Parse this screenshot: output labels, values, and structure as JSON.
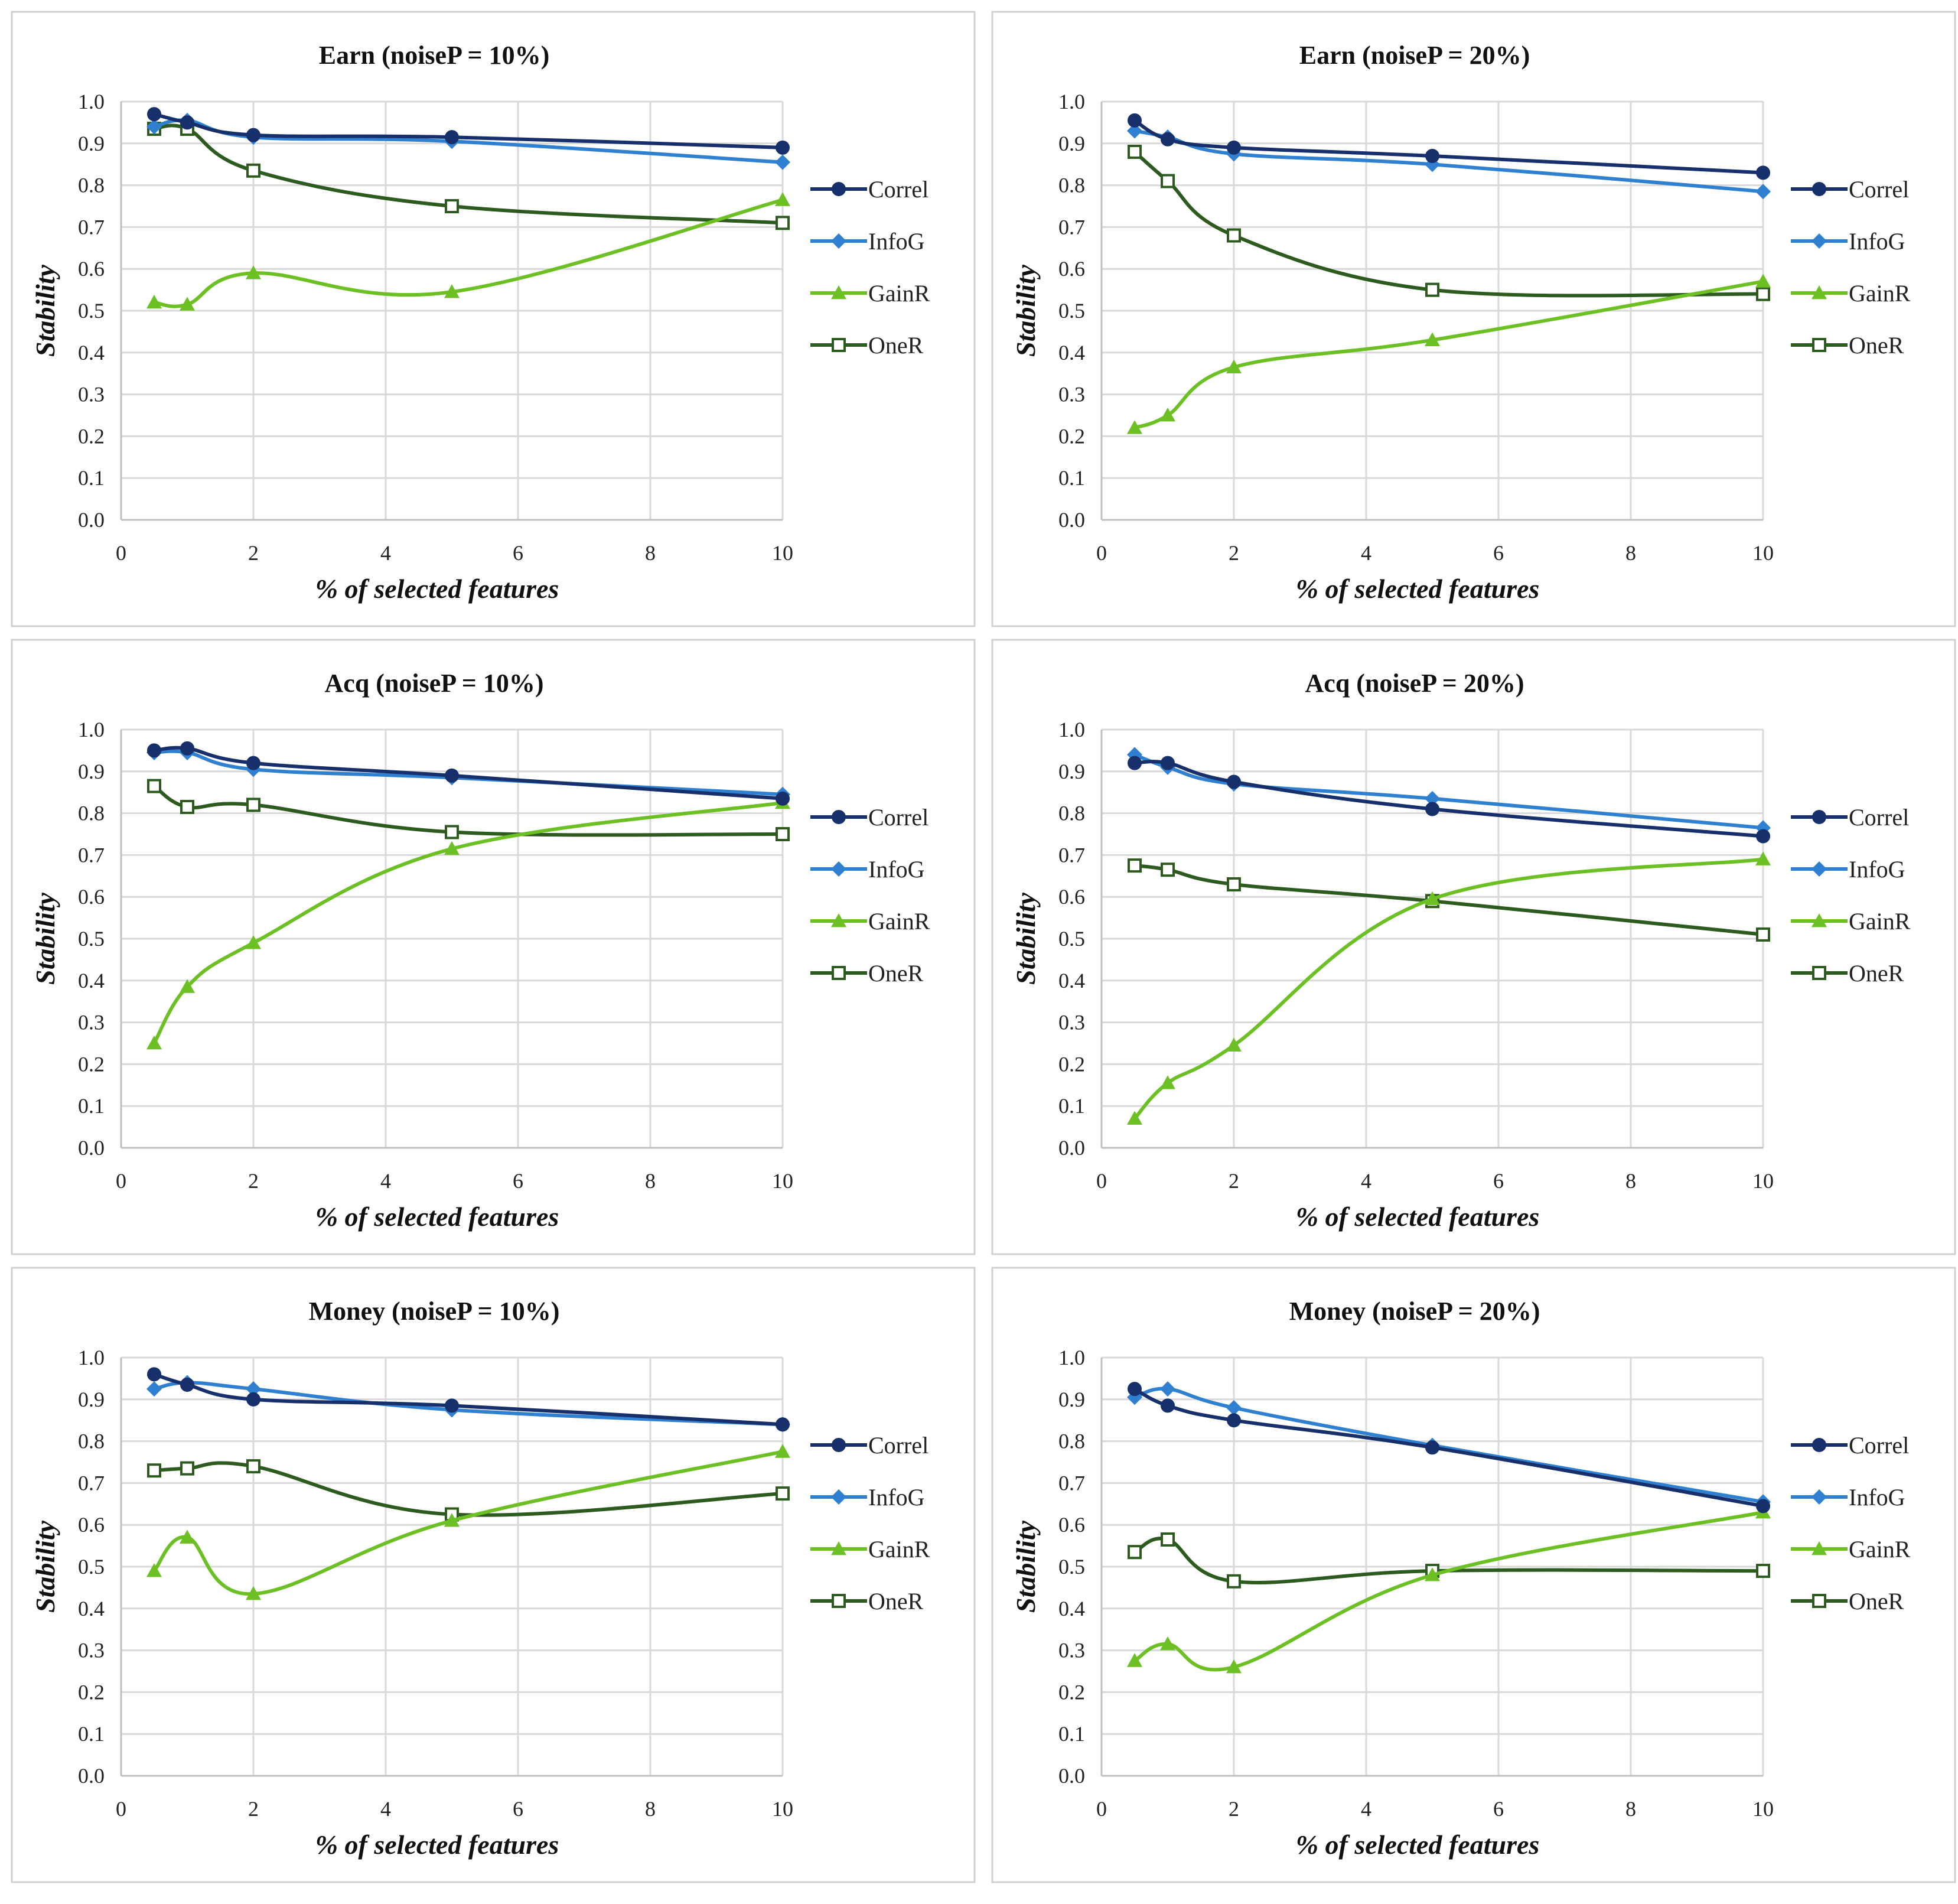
{
  "colors": {
    "Correl": "#17306b",
    "InfoG": "#2f80d0",
    "GainR": "#6cc024",
    "OneR": "#2d5a1e"
  },
  "markers": {
    "Correl": "circle",
    "InfoG": "diamond",
    "GainR": "triangle",
    "OneR": "square"
  },
  "chart_data": [
    {
      "type": "line",
      "title": "Earn (noiseP = 10%)",
      "xlabel": "% of selected features",
      "ylabel": "Stability",
      "xlim": [
        0,
        10
      ],
      "ylim": [
        0,
        1
      ],
      "xticks": [
        "0",
        "2",
        "4",
        "6",
        "8",
        "10"
      ],
      "yticks": [
        "0.0",
        "0.1",
        "0.2",
        "0.3",
        "0.4",
        "0.5",
        "0.6",
        "0.7",
        "0.8",
        "0.9",
        "1.0"
      ],
      "x": [
        0.5,
        1,
        2,
        5,
        10
      ],
      "series": [
        {
          "name": "Correl",
          "values": [
            0.97,
            0.95,
            0.92,
            0.915,
            0.89
          ]
        },
        {
          "name": "InfoG",
          "values": [
            0.94,
            0.955,
            0.915,
            0.905,
            0.855
          ]
        },
        {
          "name": "GainR",
          "values": [
            0.52,
            0.515,
            0.59,
            0.545,
            0.765
          ]
        },
        {
          "name": "OneR",
          "values": [
            0.935,
            0.935,
            0.835,
            0.75,
            0.71
          ]
        }
      ]
    },
    {
      "type": "line",
      "title": "Earn (noiseP = 20%)",
      "xlabel": "% of selected features",
      "ylabel": "Stability",
      "xlim": [
        0,
        10
      ],
      "ylim": [
        0,
        1
      ],
      "xticks": [
        "0",
        "2",
        "4",
        "6",
        "8",
        "10"
      ],
      "yticks": [
        "0.0",
        "0.1",
        "0.2",
        "0.3",
        "0.4",
        "0.5",
        "0.6",
        "0.7",
        "0.8",
        "0.9",
        "1.0"
      ],
      "x": [
        0.5,
        1,
        2,
        5,
        10
      ],
      "series": [
        {
          "name": "Correl",
          "values": [
            0.955,
            0.91,
            0.89,
            0.87,
            0.83
          ]
        },
        {
          "name": "InfoG",
          "values": [
            0.93,
            0.915,
            0.875,
            0.85,
            0.785
          ]
        },
        {
          "name": "GainR",
          "values": [
            0.22,
            0.25,
            0.365,
            0.43,
            0.57
          ]
        },
        {
          "name": "OneR",
          "values": [
            0.88,
            0.81,
            0.68,
            0.55,
            0.54
          ]
        }
      ]
    },
    {
      "type": "line",
      "title": "Acq (noiseP = 10%)",
      "xlabel": "% of selected features",
      "ylabel": "Stability",
      "xlim": [
        0,
        10
      ],
      "ylim": [
        0,
        1
      ],
      "xticks": [
        "0",
        "2",
        "4",
        "6",
        "8",
        "10"
      ],
      "yticks": [
        "0.0",
        "0.1",
        "0.2",
        "0.3",
        "0.4",
        "0.5",
        "0.6",
        "0.7",
        "0.8",
        "0.9",
        "1.0"
      ],
      "x": [
        0.5,
        1,
        2,
        5,
        10
      ],
      "series": [
        {
          "name": "Correl",
          "values": [
            0.95,
            0.955,
            0.92,
            0.89,
            0.835
          ]
        },
        {
          "name": "InfoG",
          "values": [
            0.945,
            0.945,
            0.905,
            0.885,
            0.845
          ]
        },
        {
          "name": "GainR",
          "values": [
            0.25,
            0.385,
            0.49,
            0.715,
            0.825
          ]
        },
        {
          "name": "OneR",
          "values": [
            0.865,
            0.815,
            0.82,
            0.755,
            0.75
          ]
        }
      ]
    },
    {
      "type": "line",
      "title": "Acq (noiseP = 20%)",
      "xlabel": "% of selected features",
      "ylabel": "Stability",
      "xlim": [
        0,
        10
      ],
      "ylim": [
        0,
        1
      ],
      "xticks": [
        "0",
        "2",
        "4",
        "6",
        "8",
        "10"
      ],
      "yticks": [
        "0.0",
        "0.1",
        "0.2",
        "0.3",
        "0.4",
        "0.5",
        "0.6",
        "0.7",
        "0.8",
        "0.9",
        "1.0"
      ],
      "x": [
        0.5,
        1,
        2,
        5,
        10
      ],
      "series": [
        {
          "name": "Correl",
          "values": [
            0.92,
            0.92,
            0.875,
            0.81,
            0.745
          ]
        },
        {
          "name": "InfoG",
          "values": [
            0.94,
            0.91,
            0.87,
            0.835,
            0.765
          ]
        },
        {
          "name": "GainR",
          "values": [
            0.07,
            0.155,
            0.245,
            0.595,
            0.69
          ]
        },
        {
          "name": "OneR",
          "values": [
            0.675,
            0.665,
            0.63,
            0.59,
            0.51
          ]
        }
      ]
    },
    {
      "type": "line",
      "title": "Money (noiseP = 10%)",
      "xlabel": "% of selected features",
      "ylabel": "Stability",
      "xlim": [
        0,
        10
      ],
      "ylim": [
        0,
        1
      ],
      "xticks": [
        "0",
        "2",
        "4",
        "6",
        "8",
        "10"
      ],
      "yticks": [
        "0.0",
        "0.1",
        "0.2",
        "0.3",
        "0.4",
        "0.5",
        "0.6",
        "0.7",
        "0.8",
        "0.9",
        "1.0"
      ],
      "x": [
        0.5,
        1,
        2,
        5,
        10
      ],
      "series": [
        {
          "name": "Correl",
          "values": [
            0.96,
            0.935,
            0.9,
            0.885,
            0.84
          ]
        },
        {
          "name": "InfoG",
          "values": [
            0.925,
            0.94,
            0.925,
            0.875,
            0.84
          ]
        },
        {
          "name": "GainR",
          "values": [
            0.49,
            0.57,
            0.435,
            0.61,
            0.775
          ]
        },
        {
          "name": "OneR",
          "values": [
            0.73,
            0.735,
            0.74,
            0.625,
            0.675
          ]
        }
      ]
    },
    {
      "type": "line",
      "title": "Money (noiseP = 20%)",
      "xlabel": "% of selected features",
      "ylabel": "Stability",
      "xlim": [
        0,
        10
      ],
      "ylim": [
        0,
        1
      ],
      "xticks": [
        "0",
        "2",
        "4",
        "6",
        "8",
        "10"
      ],
      "yticks": [
        "0.0",
        "0.1",
        "0.2",
        "0.3",
        "0.4",
        "0.5",
        "0.6",
        "0.7",
        "0.8",
        "0.9",
        "1.0"
      ],
      "x": [
        0.5,
        1,
        2,
        5,
        10
      ],
      "series": [
        {
          "name": "Correl",
          "values": [
            0.925,
            0.885,
            0.85,
            0.785,
            0.645
          ]
        },
        {
          "name": "InfoG",
          "values": [
            0.905,
            0.925,
            0.88,
            0.79,
            0.655
          ]
        },
        {
          "name": "GainR",
          "values": [
            0.275,
            0.315,
            0.26,
            0.48,
            0.63
          ]
        },
        {
          "name": "OneR",
          "values": [
            0.535,
            0.565,
            0.465,
            0.49,
            0.49
          ]
        }
      ]
    }
  ]
}
